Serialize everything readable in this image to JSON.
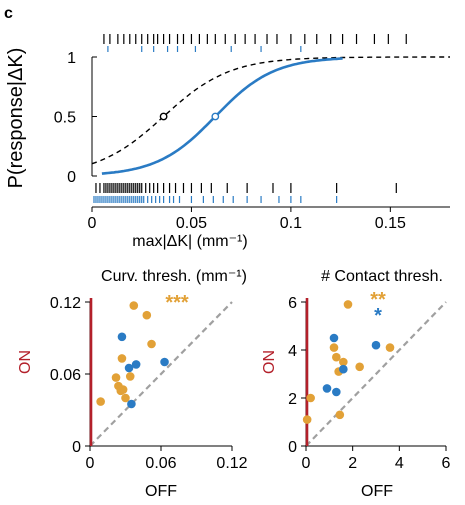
{
  "panel_label": "c",
  "colors": {
    "black": "#000000",
    "blue": "#2a7bc4",
    "orange": "#e2a137",
    "red": "#b3202a",
    "gray": "#a0a0a0"
  },
  "chart_data": [
    {
      "type": "line",
      "xlabel": "max|ΔK| (mm⁻¹)",
      "ylabel": "P(response|ΔK)",
      "xlim": [
        0,
        0.18
      ],
      "ylim": [
        0,
        1
      ],
      "xticks": [
        "0",
        "0.05",
        "0.1",
        "0.15"
      ],
      "yticks": [
        "0",
        "0.5",
        "1"
      ],
      "series": [
        {
          "color": "black",
          "style": "dashed",
          "midpoint": 0.036,
          "slope": 60,
          "x_range": [
            0,
            0.18
          ],
          "threshold_point": [
            0.036,
            0.5
          ]
        },
        {
          "color": "blue",
          "style": "solid",
          "midpoint": 0.062,
          "slope": 68,
          "x_range": [
            0.005,
            0.126
          ],
          "threshold_point": [
            0.062,
            0.5
          ]
        }
      ],
      "rasters": {
        "black_response": [
          0.006,
          0.009,
          0.013,
          0.016,
          0.019,
          0.022,
          0.025,
          0.028,
          0.031,
          0.033,
          0.036,
          0.039,
          0.043,
          0.046,
          0.05,
          0.054,
          0.058,
          0.062,
          0.067,
          0.072,
          0.077,
          0.082,
          0.088,
          0.093,
          0.1,
          0.107,
          0.113,
          0.12,
          0.126,
          0.133,
          0.142,
          0.149,
          0.158
        ],
        "blue_response": [
          0.008,
          0.025,
          0.031,
          0.038,
          0.043,
          0.052,
          0.07,
          0.085,
          0.105
        ],
        "black_no_response": [
          0.002,
          0.004,
          0.006,
          0.007,
          0.008,
          0.009,
          0.01,
          0.011,
          0.012,
          0.013,
          0.014,
          0.015,
          0.016,
          0.017,
          0.018,
          0.019,
          0.02,
          0.021,
          0.022,
          0.023,
          0.024,
          0.025,
          0.027,
          0.029,
          0.031,
          0.033,
          0.036,
          0.039,
          0.042,
          0.046,
          0.05,
          0.055,
          0.06,
          0.068,
          0.078,
          0.091,
          0.1,
          0.123,
          0.153
        ],
        "blue_no_response": [
          0.001,
          0.002,
          0.003,
          0.004,
          0.005,
          0.006,
          0.007,
          0.008,
          0.009,
          0.01,
          0.011,
          0.012,
          0.013,
          0.014,
          0.015,
          0.016,
          0.017,
          0.018,
          0.019,
          0.02,
          0.021,
          0.022,
          0.023,
          0.024,
          0.025,
          0.026,
          0.028,
          0.03,
          0.032,
          0.034,
          0.036,
          0.039,
          0.041,
          0.044,
          0.05,
          0.056,
          0.061,
          0.066,
          0.071,
          0.078,
          0.085,
          0.094,
          0.1,
          0.105,
          0.123
        ]
      }
    },
    {
      "type": "scatter",
      "title": "Curv. thresh. (mm⁻¹)",
      "xlabel": "OFF",
      "ylabel": "ON",
      "xlim": [
        0,
        0.12
      ],
      "ylim": [
        0,
        0.12
      ],
      "xticks": [
        "0",
        "0.06",
        "0.12"
      ],
      "yticks": [
        "0",
        "0.06",
        "0.12"
      ],
      "significance": [
        {
          "text": "***",
          "color": "orange"
        }
      ],
      "orange_points": [
        [
          0.009,
          0.037
        ],
        [
          0.022,
          0.057
        ],
        [
          0.024,
          0.05
        ],
        [
          0.026,
          0.046
        ],
        [
          0.027,
          0.073
        ],
        [
          0.028,
          0.047
        ],
        [
          0.03,
          0.04
        ],
        [
          0.034,
          0.058
        ],
        [
          0.037,
          0.117
        ],
        [
          0.048,
          0.109
        ],
        [
          0.052,
          0.085
        ]
      ],
      "blue_points": [
        [
          0.027,
          0.091
        ],
        [
          0.033,
          0.065
        ],
        [
          0.035,
          0.035
        ],
        [
          0.039,
          0.068
        ],
        [
          0.063,
          0.07
        ]
      ],
      "red_axis_y": [
        0,
        0.12
      ]
    },
    {
      "type": "scatter",
      "title": "# Contact thresh.",
      "xlabel": "OFF",
      "ylabel": "ON",
      "xlim": [
        0,
        6
      ],
      "ylim": [
        0,
        6
      ],
      "xticks": [
        "0",
        "2",
        "4",
        "6"
      ],
      "yticks": [
        "0",
        "2",
        "4",
        "6"
      ],
      "significance": [
        {
          "text": "**",
          "color": "orange"
        },
        {
          "text": "*",
          "color": "blue"
        }
      ],
      "orange_points": [
        [
          0.05,
          1.1
        ],
        [
          0.2,
          2.0
        ],
        [
          1.2,
          4.1
        ],
        [
          1.3,
          3.7
        ],
        [
          1.4,
          3.1
        ],
        [
          1.45,
          1.3
        ],
        [
          1.6,
          3.5
        ],
        [
          1.8,
          5.9
        ],
        [
          2.3,
          3.3
        ],
        [
          3.6,
          4.1
        ]
      ],
      "blue_points": [
        [
          0.9,
          2.4
        ],
        [
          1.2,
          4.5
        ],
        [
          1.3,
          2.25
        ],
        [
          1.6,
          3.2
        ],
        [
          3.0,
          4.2
        ]
      ],
      "red_axis_y": [
        0,
        6
      ]
    }
  ]
}
